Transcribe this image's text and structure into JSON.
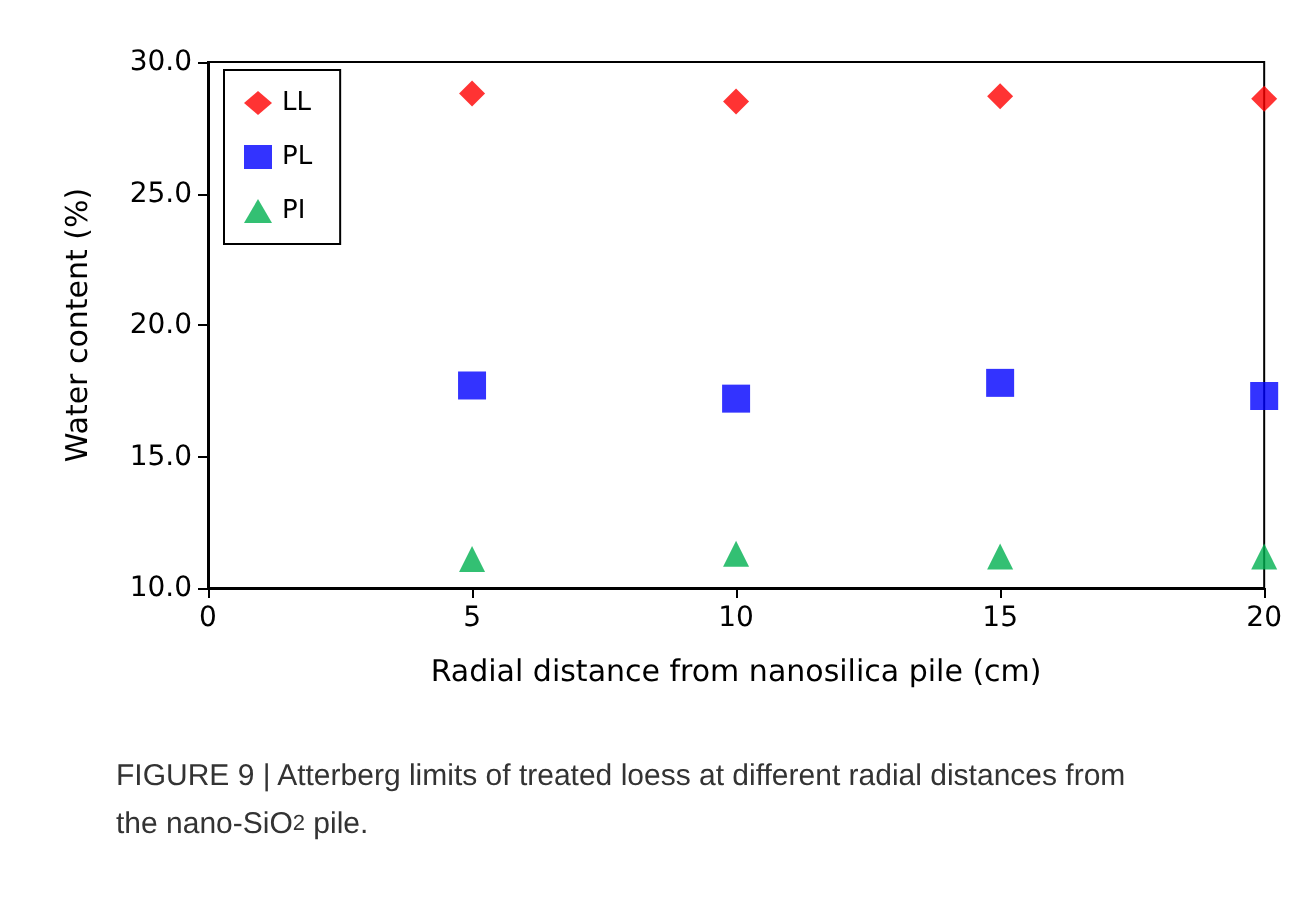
{
  "chart_data": {
    "type": "scatter",
    "xlabel": "Radial distance from nanosilica pile (cm)",
    "ylabel": "Water content (%)",
    "x": [
      5,
      10,
      15,
      20
    ],
    "series": [
      {
        "name": "LL",
        "color": "#ff0000",
        "marker": "diamond",
        "values": [
          28.8,
          28.5,
          28.7,
          28.6
        ]
      },
      {
        "name": "PL",
        "color": "#0000ff",
        "marker": "square",
        "values": [
          17.7,
          17.2,
          17.8,
          17.3
        ]
      },
      {
        "name": "PI",
        "color": "#00b050",
        "marker": "triangle",
        "values": [
          11.1,
          11.3,
          11.2,
          11.2
        ]
      }
    ],
    "xlim": [
      0,
      20
    ],
    "xticks": [
      0,
      5,
      10,
      15,
      20
    ],
    "ylim": [
      10,
      30
    ],
    "yticks": [
      {
        "value": 10,
        "label": "10.0"
      },
      {
        "value": 15,
        "label": "15.0"
      },
      {
        "value": 20,
        "label": "20.0"
      },
      {
        "value": 25,
        "label": "25.0"
      },
      {
        "value": 30,
        "label": "30.0"
      }
    ],
    "grid": false,
    "legend": "top left",
    "annotations": [
      "FIGURE 9 | Atterberg limits of treated loess at different radial distances from the nano-SiO$_{2}$ pile."
    ]
  }
}
